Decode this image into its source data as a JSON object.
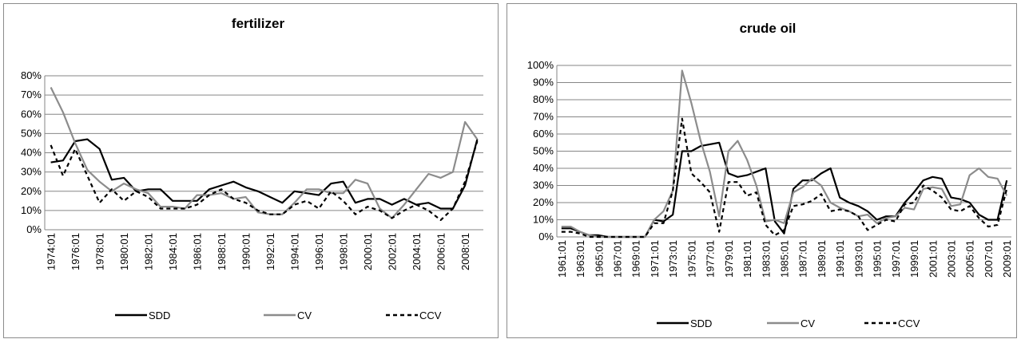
{
  "chart_data": [
    {
      "type": "line",
      "title": "fertilizer",
      "xlabel": "",
      "ylabel": "",
      "ylim": [
        0,
        0.8
      ],
      "yticks": [
        "0%",
        "10%",
        "20%",
        "30%",
        "40%",
        "50%",
        "60%",
        "70%",
        "80%"
      ],
      "x": [
        1974,
        1975,
        1976,
        1977,
        1978,
        1979,
        1980,
        1981,
        1982,
        1983,
        1984,
        1985,
        1986,
        1987,
        1988,
        1989,
        1990,
        1991,
        1992,
        1993,
        1994,
        1995,
        1996,
        1997,
        1998,
        1999,
        2000,
        2001,
        2002,
        2003,
        2004,
        2005,
        2006,
        2007,
        2008,
        2009
      ],
      "xticks": [
        "1974:01",
        "1976:01",
        "1978:01",
        "1980:01",
        "1982:01",
        "1984:01",
        "1986:01",
        "1988:01",
        "1990:01",
        "1992:01",
        "1994:01",
        "1996:01",
        "1998:01",
        "2000:01",
        "2002:01",
        "2004:01",
        "2006:01",
        "2008:01"
      ],
      "grid": true,
      "legend": "bottom",
      "series": [
        {
          "name": "SDD",
          "color": "#000000",
          "dash": "solid",
          "values": [
            0.35,
            0.36,
            0.46,
            0.47,
            0.42,
            0.26,
            0.27,
            0.2,
            0.21,
            0.21,
            0.15,
            0.15,
            0.15,
            0.21,
            0.23,
            0.25,
            0.22,
            0.2,
            0.17,
            0.14,
            0.2,
            0.19,
            0.18,
            0.24,
            0.25,
            0.14,
            0.16,
            0.16,
            0.13,
            0.16,
            0.13,
            0.14,
            0.11,
            0.11,
            0.23,
            0.47
          ]
        },
        {
          "name": "CV",
          "color": "#8c8c8c",
          "dash": "solid",
          "values": [
            0.74,
            0.61,
            0.45,
            0.31,
            0.25,
            0.2,
            0.24,
            0.21,
            0.19,
            0.12,
            0.12,
            0.11,
            0.18,
            0.18,
            0.19,
            0.16,
            0.17,
            0.09,
            0.08,
            0.08,
            0.14,
            0.21,
            0.21,
            0.19,
            0.19,
            0.26,
            0.24,
            0.11,
            0.06,
            0.13,
            0.21,
            0.29,
            0.27,
            0.3,
            0.56,
            0.47
          ]
        },
        {
          "name": "CCV",
          "color": "#000000",
          "dash": "dashed",
          "values": [
            0.44,
            0.28,
            0.42,
            0.28,
            0.14,
            0.21,
            0.15,
            0.2,
            0.17,
            0.11,
            0.11,
            0.11,
            0.13,
            0.18,
            0.21,
            0.16,
            0.14,
            0.1,
            0.08,
            0.08,
            0.13,
            0.15,
            0.11,
            0.2,
            0.15,
            0.08,
            0.12,
            0.1,
            0.06,
            0.1,
            0.13,
            0.1,
            0.05,
            0.11,
            0.25,
            0.46
          ]
        }
      ]
    },
    {
      "type": "line",
      "title": "crude oil",
      "xlabel": "",
      "ylabel": "",
      "ylim": [
        0,
        1.0
      ],
      "yticks": [
        "0%",
        "10%",
        "20%",
        "30%",
        "40%",
        "50%",
        "60%",
        "70%",
        "80%",
        "90%",
        "100%"
      ],
      "x": [
        1961,
        1962,
        1963,
        1964,
        1965,
        1966,
        1967,
        1968,
        1969,
        1970,
        1971,
        1972,
        1973,
        1974,
        1975,
        1976,
        1977,
        1978,
        1979,
        1980,
        1981,
        1982,
        1983,
        1984,
        1985,
        1986,
        1987,
        1988,
        1989,
        1990,
        1991,
        1992,
        1993,
        1994,
        1995,
        1996,
        1997,
        1998,
        1999,
        2000,
        2001,
        2002,
        2003,
        2004,
        2005,
        2006,
        2007,
        2008,
        2009
      ],
      "xticks": [
        "1961:01",
        "1963:01",
        "1965:01",
        "1967:01",
        "1969:01",
        "1971:01",
        "1973:01",
        "1975:01",
        "1977:01",
        "1979:01",
        "1981:01",
        "1983:01",
        "1985:01",
        "1987:01",
        "1989:01",
        "1991:01",
        "1993:01",
        "1995:01",
        "1997:01",
        "1999:01",
        "2001:01",
        "2003:01",
        "2005:01",
        "2007:01",
        "2009:01"
      ],
      "grid": true,
      "legend": "bottom",
      "series": [
        {
          "name": "SDD",
          "color": "#000000",
          "dash": "solid",
          "values": [
            0.05,
            0.05,
            0.03,
            0.01,
            0.01,
            0.0,
            0.0,
            0.0,
            0.0,
            0.0,
            0.1,
            0.09,
            0.13,
            0.5,
            0.5,
            0.53,
            0.54,
            0.55,
            0.37,
            0.35,
            0.36,
            0.38,
            0.4,
            0.09,
            0.02,
            0.28,
            0.33,
            0.33,
            0.37,
            0.4,
            0.23,
            0.2,
            0.18,
            0.15,
            0.1,
            0.12,
            0.12,
            0.2,
            0.26,
            0.33,
            0.35,
            0.34,
            0.23,
            0.22,
            0.2,
            0.13,
            0.1,
            0.1,
            0.33
          ]
        },
        {
          "name": "CV",
          "color": "#8c8c8c",
          "dash": "solid",
          "values": [
            0.06,
            0.06,
            0.03,
            0.01,
            0.0,
            0.0,
            0.0,
            0.0,
            0.0,
            0.0,
            0.1,
            0.15,
            0.27,
            0.97,
            0.78,
            0.56,
            0.38,
            0.12,
            0.5,
            0.56,
            0.45,
            0.3,
            0.09,
            0.1,
            0.08,
            0.26,
            0.29,
            0.34,
            0.3,
            0.2,
            0.17,
            0.15,
            0.12,
            0.13,
            0.08,
            0.11,
            0.12,
            0.17,
            0.16,
            0.28,
            0.29,
            0.28,
            0.18,
            0.19,
            0.36,
            0.4,
            0.35,
            0.34,
            0.24
          ]
        },
        {
          "name": "CCV",
          "color": "#000000",
          "dash": "dashed",
          "values": [
            0.03,
            0.03,
            0.02,
            0.0,
            0.0,
            0.0,
            0.0,
            0.0,
            0.0,
            0.0,
            0.08,
            0.08,
            0.27,
            0.69,
            0.37,
            0.32,
            0.26,
            0.03,
            0.32,
            0.32,
            0.24,
            0.26,
            0.07,
            0.01,
            0.04,
            0.18,
            0.19,
            0.21,
            0.25,
            0.15,
            0.16,
            0.15,
            0.12,
            0.04,
            0.07,
            0.1,
            0.09,
            0.19,
            0.2,
            0.3,
            0.27,
            0.23,
            0.16,
            0.15,
            0.18,
            0.11,
            0.06,
            0.07,
            0.28
          ]
        }
      ]
    }
  ]
}
